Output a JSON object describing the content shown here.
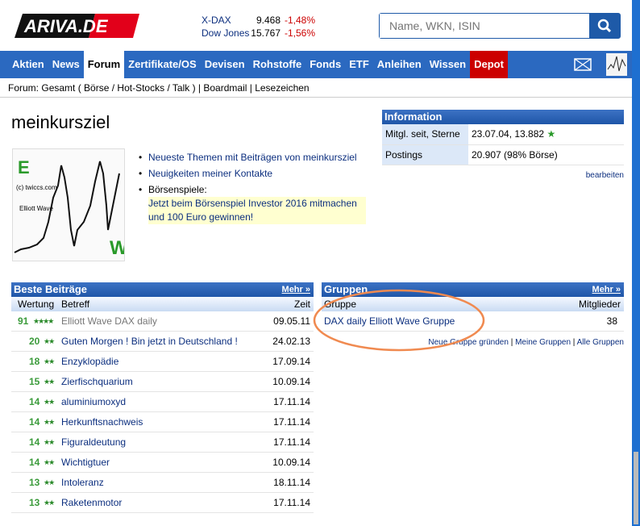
{
  "header": {
    "logo_text": "ARIVA.DE",
    "search_placeholder": "Name, WKN, ISIN",
    "ticker": [
      {
        "name": "X-DAX",
        "value": "9.468",
        "change": "-1,48%"
      },
      {
        "name": "Dow Jones",
        "value": "15.767",
        "change": "-1,56%"
      }
    ]
  },
  "nav": {
    "items": [
      "Aktien",
      "News",
      "Forum",
      "Zertifikate/OS",
      "Devisen",
      "Rohstoffe",
      "Fonds",
      "ETF",
      "Anleihen",
      "Wissen",
      "Depot"
    ],
    "active": "Forum"
  },
  "breadcrumb": {
    "prefix": "Forum:",
    "links": [
      "Gesamt",
      "Börse",
      "Hot-Stocks",
      "Talk",
      "Boardmail",
      "Lesezeichen"
    ]
  },
  "profile": {
    "username": "meinkursziel",
    "image_labels": [
      "E",
      "(c) twiccs.com",
      "Elliott Wave",
      "W"
    ],
    "links": [
      "Neueste Themen mit Beiträgen von meinkursziel",
      "Neuigkeiten meiner Kontakte"
    ],
    "game_label": "Börsenspiele:",
    "game_text": "Jetzt beim Börsenspiel Investor 2016 mitmachen und 100 Euro gewinnen!"
  },
  "information": {
    "title": "Information",
    "rows": [
      {
        "label": "Mitgl. seit, Sterne",
        "value": "23.07.04, 13.882"
      },
      {
        "label": "Postings",
        "value": "20.907 (98% Börse)"
      }
    ],
    "edit": "bearbeiten"
  },
  "best_posts": {
    "title": "Beste Beiträge",
    "more": "Mehr »",
    "columns": [
      "Wertung",
      "Betreff",
      "Zeit"
    ],
    "rows": [
      {
        "score": "91",
        "stars": 4,
        "subject": "Elliott Wave DAX daily",
        "date": "09.05.11"
      },
      {
        "score": "20",
        "stars": 2,
        "subject": "Guten Morgen ! Bin jetzt in Deutschland !",
        "date": "24.02.13"
      },
      {
        "score": "18",
        "stars": 2,
        "subject": "Enzyklopädie",
        "date": "17.09.14"
      },
      {
        "score": "15",
        "stars": 2,
        "subject": "Zierfischquarium",
        "date": "10.09.14"
      },
      {
        "score": "14",
        "stars": 2,
        "subject": "aluminiumoxyd",
        "date": "17.11.14"
      },
      {
        "score": "14",
        "stars": 2,
        "subject": "Herkunftsnachweis",
        "date": "17.11.14"
      },
      {
        "score": "14",
        "stars": 2,
        "subject": "Figuraldeutung",
        "date": "17.11.14"
      },
      {
        "score": "14",
        "stars": 2,
        "subject": "Wichtigtuer",
        "date": "10.09.14"
      },
      {
        "score": "13",
        "stars": 2,
        "subject": "Intoleranz",
        "date": "18.11.14"
      },
      {
        "score": "13",
        "stars": 2,
        "subject": "Raketenmotor",
        "date": "17.11.14"
      }
    ]
  },
  "groups": {
    "title": "Gruppen",
    "more": "Mehr »",
    "columns": [
      "Gruppe",
      "Mitglieder"
    ],
    "rows": [
      {
        "name": "DAX daily Elliott Wave Gruppe",
        "members": "38"
      }
    ],
    "footer_links": [
      "Neue Gruppe gründen",
      "Meine Gruppen",
      "Alle Gruppen"
    ]
  },
  "colors": {
    "nav": "#2b69c0",
    "depot": "#cc0000",
    "annotation_circle": "#f08a50",
    "score_green": "#3b9b3b"
  }
}
